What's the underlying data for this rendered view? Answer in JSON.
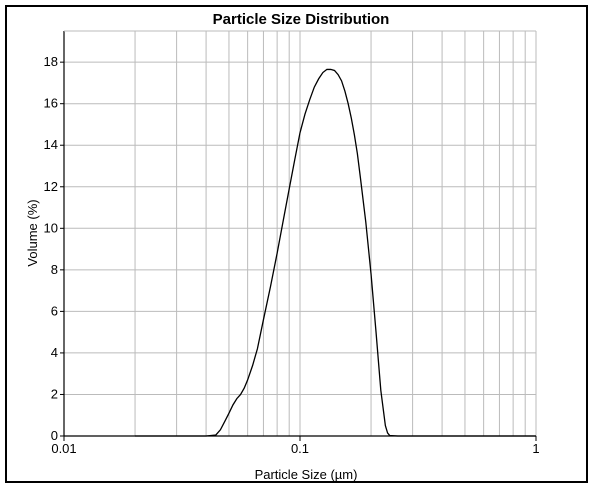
{
  "chart_data": {
    "type": "line",
    "title": "Particle Size Distribution",
    "xlabel": "Particle Size (µm)",
    "ylabel": "Volume (%)",
    "x_scale": "log",
    "xlim": [
      0.01,
      1
    ],
    "ylim": [
      0,
      19.5
    ],
    "x_ticks": [
      {
        "value": 0.01,
        "label": "0.01"
      },
      {
        "value": 0.1,
        "label": "0.1"
      },
      {
        "value": 1,
        "label": "1"
      }
    ],
    "y_ticks": [
      {
        "value": 0,
        "label": "0"
      },
      {
        "value": 2,
        "label": "2"
      },
      {
        "value": 4,
        "label": "4"
      },
      {
        "value": 6,
        "label": "6"
      },
      {
        "value": 8,
        "label": "8"
      },
      {
        "value": 10,
        "label": "10"
      },
      {
        "value": 12,
        "label": "12"
      },
      {
        "value": 14,
        "label": "14"
      },
      {
        "value": 16,
        "label": "16"
      },
      {
        "value": 18,
        "label": "18"
      }
    ],
    "grid": true,
    "colors": {
      "line": "#000000",
      "grid": "#bbbbbb",
      "axis": "#000000"
    },
    "series": [
      {
        "x": [
          0.02,
          0.03,
          0.04,
          0.044,
          0.046,
          0.048,
          0.05,
          0.052,
          0.054,
          0.056,
          0.058,
          0.06,
          0.063,
          0.066,
          0.07,
          0.075,
          0.08,
          0.085,
          0.09,
          0.095,
          0.1,
          0.105,
          0.11,
          0.115,
          0.12,
          0.125,
          0.13,
          0.135,
          0.14,
          0.145,
          0.15,
          0.155,
          0.16,
          0.165,
          0.17,
          0.175,
          0.18,
          0.19,
          0.2,
          0.21,
          0.22,
          0.23,
          0.235,
          0.24,
          0.26,
          0.3,
          0.5,
          0.8,
          1.0
        ],
        "y": [
          0,
          0,
          0,
          0.05,
          0.3,
          0.7,
          1.1,
          1.5,
          1.8,
          2.0,
          2.3,
          2.7,
          3.4,
          4.2,
          5.6,
          7.2,
          8.8,
          10.4,
          11.9,
          13.3,
          14.6,
          15.5,
          16.2,
          16.8,
          17.2,
          17.5,
          17.65,
          17.65,
          17.6,
          17.4,
          17.1,
          16.6,
          16.0,
          15.3,
          14.5,
          13.6,
          12.5,
          10.3,
          7.8,
          5.0,
          2.2,
          0.5,
          0.15,
          0.02,
          0,
          0,
          0,
          0,
          0
        ]
      }
    ]
  }
}
